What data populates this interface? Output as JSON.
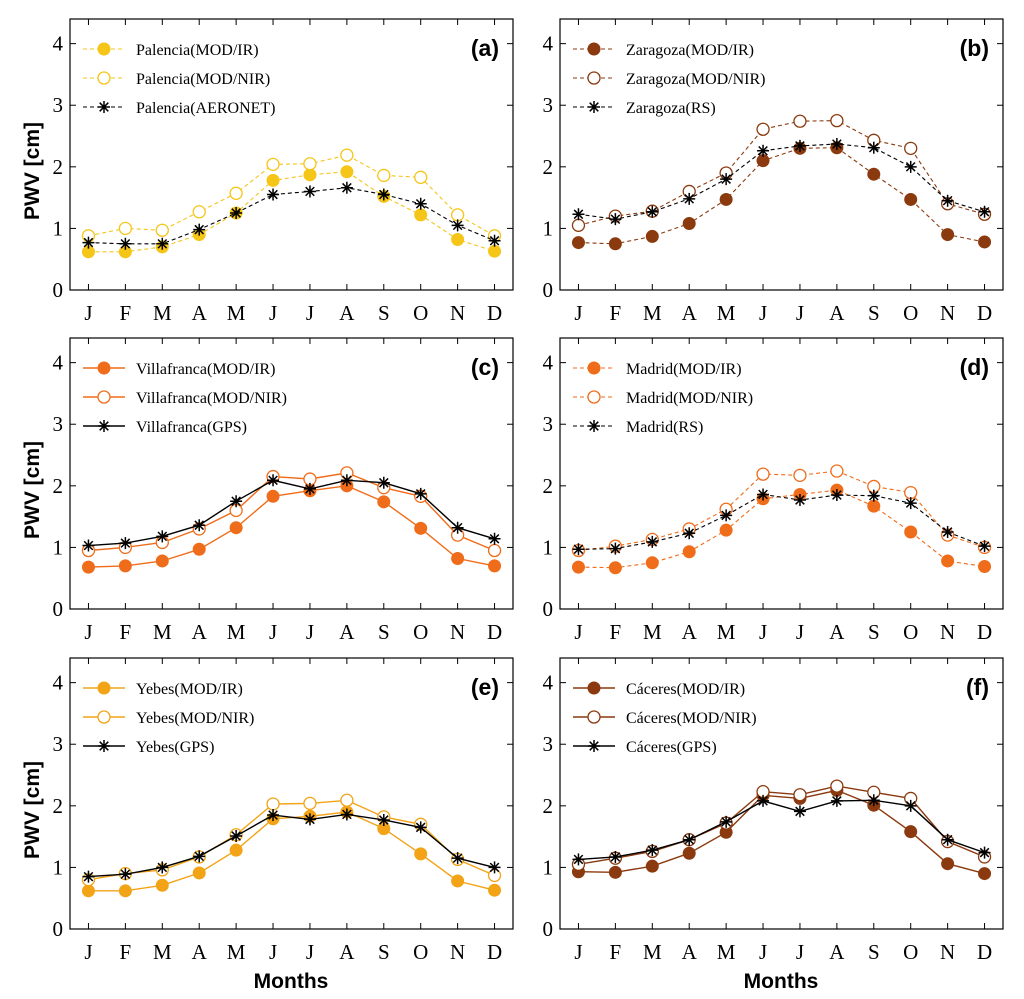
{
  "figure": {
    "ylabel": "PWV [cm]",
    "xlabel": "Months"
  },
  "chart_data": [
    {
      "type": "line",
      "panel": "(a)",
      "categories": [
        "J",
        "F",
        "M",
        "A",
        "M",
        "J",
        "J",
        "A",
        "S",
        "O",
        "N",
        "D"
      ],
      "ylim": [
        0,
        4.4
      ],
      "yticks": [
        0,
        1,
        2,
        3,
        4
      ],
      "xlabel": "",
      "ylabel": "PWV [cm]",
      "legend_position": "top-left",
      "grid": false,
      "series": [
        {
          "name": "Palencia(MOD/IR)",
          "color": "#f5c518",
          "marker": "filled",
          "dash": true,
          "values": [
            0.62,
            0.62,
            0.7,
            0.9,
            1.25,
            1.78,
            1.87,
            1.92,
            1.52,
            1.22,
            0.82,
            0.63
          ]
        },
        {
          "name": "Palencia(MOD/NIR)",
          "color": "#f5c518",
          "marker": "open",
          "dash": true,
          "values": [
            0.88,
            1.0,
            0.97,
            1.27,
            1.57,
            2.04,
            2.05,
            2.19,
            1.86,
            1.83,
            1.22,
            0.88
          ]
        },
        {
          "name": "Palencia(AERONET)",
          "color": "#000000",
          "marker": "star",
          "dash": true,
          "values": [
            0.77,
            0.75,
            0.75,
            0.98,
            1.25,
            1.55,
            1.6,
            1.66,
            1.55,
            1.4,
            1.05,
            0.8
          ]
        }
      ]
    },
    {
      "type": "line",
      "panel": "(b)",
      "categories": [
        "J",
        "F",
        "M",
        "A",
        "M",
        "J",
        "J",
        "A",
        "S",
        "O",
        "N",
        "D"
      ],
      "ylim": [
        0,
        4.4
      ],
      "yticks": [
        0,
        1,
        2,
        3,
        4
      ],
      "xlabel": "",
      "ylabel": "",
      "legend_position": "top-left",
      "grid": false,
      "series": [
        {
          "name": "Zaragoza(MOD/IR)",
          "color": "#8b3a0f",
          "marker": "filled",
          "dash": true,
          "values": [
            0.77,
            0.75,
            0.87,
            1.08,
            1.47,
            2.1,
            2.3,
            2.31,
            1.88,
            1.47,
            0.9,
            0.78
          ]
        },
        {
          "name": "Zaragoza(MOD/NIR)",
          "color": "#8b3a0f",
          "marker": "open",
          "dash": true,
          "values": [
            1.05,
            1.2,
            1.28,
            1.6,
            1.9,
            2.61,
            2.74,
            2.75,
            2.43,
            2.3,
            1.4,
            1.23
          ]
        },
        {
          "name": "Zaragoza(RS)",
          "color": "#000000",
          "marker": "star",
          "dash": true,
          "values": [
            1.23,
            1.15,
            1.27,
            1.48,
            1.8,
            2.26,
            2.34,
            2.37,
            2.31,
            2.0,
            1.45,
            1.27
          ]
        }
      ]
    },
    {
      "type": "line",
      "panel": "(c)",
      "categories": [
        "J",
        "F",
        "M",
        "A",
        "M",
        "J",
        "J",
        "A",
        "S",
        "O",
        "N",
        "D"
      ],
      "ylim": [
        0,
        4.4
      ],
      "yticks": [
        0,
        1,
        2,
        3,
        4
      ],
      "xlabel": "",
      "ylabel": "PWV [cm]",
      "legend_position": "top-left",
      "grid": false,
      "series": [
        {
          "name": "Villafranca(MOD/IR)",
          "color": "#ef6c1a",
          "marker": "filled",
          "dash": false,
          "values": [
            0.68,
            0.7,
            0.78,
            0.97,
            1.32,
            1.83,
            1.92,
            2.0,
            1.74,
            1.31,
            0.82,
            0.7
          ]
        },
        {
          "name": "Villafranca(MOD/NIR)",
          "color": "#ef6c1a",
          "marker": "open",
          "dash": false,
          "values": [
            0.95,
            1.0,
            1.08,
            1.3,
            1.6,
            2.15,
            2.11,
            2.21,
            1.97,
            1.83,
            1.2,
            0.95
          ]
        },
        {
          "name": "Villafranca(GPS)",
          "color": "#000000",
          "marker": "star",
          "dash": false,
          "values": [
            1.03,
            1.07,
            1.18,
            1.36,
            1.75,
            2.09,
            1.95,
            2.09,
            2.05,
            1.87,
            1.32,
            1.14
          ]
        }
      ]
    },
    {
      "type": "line",
      "panel": "(d)",
      "categories": [
        "J",
        "F",
        "M",
        "A",
        "M",
        "J",
        "J",
        "A",
        "S",
        "O",
        "N",
        "D"
      ],
      "ylim": [
        0,
        4.4
      ],
      "yticks": [
        0,
        1,
        2,
        3,
        4
      ],
      "xlabel": "",
      "ylabel": "",
      "legend_position": "top-left",
      "grid": false,
      "series": [
        {
          "name": "Madrid(MOD/IR)",
          "color": "#ef6c1a",
          "marker": "filled",
          "dash": true,
          "values": [
            0.68,
            0.67,
            0.75,
            0.93,
            1.28,
            1.79,
            1.86,
            1.93,
            1.67,
            1.25,
            0.78,
            0.69
          ]
        },
        {
          "name": "Madrid(MOD/NIR)",
          "color": "#ef6c1a",
          "marker": "open",
          "dash": true,
          "values": [
            0.95,
            1.02,
            1.13,
            1.3,
            1.62,
            2.19,
            2.17,
            2.24,
            1.99,
            1.89,
            1.2,
            1.0
          ]
        },
        {
          "name": "Madrid(RS)",
          "color": "#000000",
          "marker": "star",
          "dash": true,
          "values": [
            0.97,
            0.98,
            1.09,
            1.23,
            1.52,
            1.86,
            1.77,
            1.85,
            1.84,
            1.72,
            1.25,
            1.02
          ]
        }
      ]
    },
    {
      "type": "line",
      "panel": "(e)",
      "categories": [
        "J",
        "F",
        "M",
        "A",
        "M",
        "J",
        "J",
        "A",
        "S",
        "O",
        "N",
        "D"
      ],
      "ylim": [
        0,
        4.4
      ],
      "yticks": [
        0,
        1,
        2,
        3,
        4
      ],
      "xlabel": "Months",
      "ylabel": "PWV [cm]",
      "legend_position": "top-left",
      "grid": false,
      "series": [
        {
          "name": "Yebes(MOD/IR)",
          "color": "#f2a316",
          "marker": "filled",
          "dash": false,
          "values": [
            0.62,
            0.62,
            0.71,
            0.91,
            1.28,
            1.79,
            1.83,
            1.9,
            1.63,
            1.22,
            0.78,
            0.63
          ]
        },
        {
          "name": "Yebes(MOD/NIR)",
          "color": "#f2a316",
          "marker": "open",
          "dash": false,
          "values": [
            0.8,
            0.9,
            0.96,
            1.17,
            1.53,
            2.03,
            2.04,
            2.09,
            1.82,
            1.7,
            1.13,
            0.87
          ]
        },
        {
          "name": "Yebes(GPS)",
          "color": "#000000",
          "marker": "star",
          "dash": false,
          "values": [
            0.85,
            0.89,
            1.0,
            1.18,
            1.51,
            1.85,
            1.78,
            1.86,
            1.77,
            1.65,
            1.15,
            1.0
          ]
        }
      ]
    },
    {
      "type": "line",
      "panel": "(f)",
      "categories": [
        "J",
        "F",
        "M",
        "A",
        "M",
        "J",
        "J",
        "A",
        "S",
        "O",
        "N",
        "D"
      ],
      "ylim": [
        0,
        4.4
      ],
      "yticks": [
        0,
        1,
        2,
        3,
        4
      ],
      "xlabel": "Months",
      "ylabel": "",
      "legend_position": "top-left",
      "grid": false,
      "series": [
        {
          "name": "Cáceres(MOD/IR)",
          "color": "#8b3a0f",
          "marker": "filled",
          "dash": false,
          "values": [
            0.93,
            0.92,
            1.02,
            1.23,
            1.57,
            2.17,
            2.12,
            2.25,
            2.01,
            1.58,
            1.06,
            0.9
          ]
        },
        {
          "name": "Cáceres(MOD/NIR)",
          "color": "#8b3a0f",
          "marker": "open",
          "dash": false,
          "values": [
            1.05,
            1.15,
            1.26,
            1.45,
            1.72,
            2.23,
            2.18,
            2.32,
            2.22,
            2.12,
            1.42,
            1.17
          ]
        },
        {
          "name": "Cáceres(GPS)",
          "color": "#000000",
          "marker": "star",
          "dash": false,
          "values": [
            1.13,
            1.17,
            1.28,
            1.45,
            1.74,
            2.08,
            1.91,
            2.08,
            2.09,
            2.0,
            1.45,
            1.24
          ]
        }
      ]
    }
  ]
}
